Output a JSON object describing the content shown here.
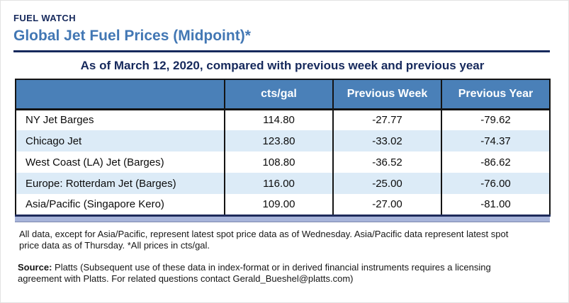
{
  "header": {
    "kicker": "FUEL WATCH",
    "title": "Global Jet Fuel Prices (Midpoint)*",
    "subtitle": "As of March 12, 2020, compared with previous week and previous year"
  },
  "table": {
    "columns": [
      "",
      "cts/gal",
      "Previous Week",
      "Previous Year"
    ],
    "rows": [
      {
        "label": "NY Jet Barges",
        "cts_gal": "114.80",
        "prev_week": "-27.77",
        "prev_year": "-79.62"
      },
      {
        "label": "Chicago Jet",
        "cts_gal": "123.80",
        "prev_week": "-33.02",
        "prev_year": "-74.37"
      },
      {
        "label": "West Coast (LA) Jet (Barges)",
        "cts_gal": "108.80",
        "prev_week": "-36.52",
        "prev_year": "-86.62"
      },
      {
        "label": "Europe: Rotterdam Jet (Barges)",
        "cts_gal": "116.00",
        "prev_week": "-25.00",
        "prev_year": "-76.00"
      },
      {
        "label": "Asia/Pacific (Singapore Kero)",
        "cts_gal": "109.00",
        "prev_week": "-27.00",
        "prev_year": "-81.00"
      }
    ]
  },
  "notes": {
    "footnote": "All data, except for Asia/Pacific, represent latest spot price data as of Wednesday. Asia/Pacific data represent latest spot price data as of Thursday. *All prices in cts/gal.",
    "source_label": "Source:",
    "source_text": " Platts (Subsequent use of these data in index-format or in derived financial instruments requires a licensing agreement with Platts. For related questions contact Gerald_Bueshel@platts.com)"
  },
  "colors": {
    "navy": "#16295c",
    "title_blue": "#4277b4",
    "header_blue": "#4a80b8",
    "row_alt": "#dcebf7",
    "table_border": "#141414",
    "bar_fill": "#a7b4da"
  }
}
